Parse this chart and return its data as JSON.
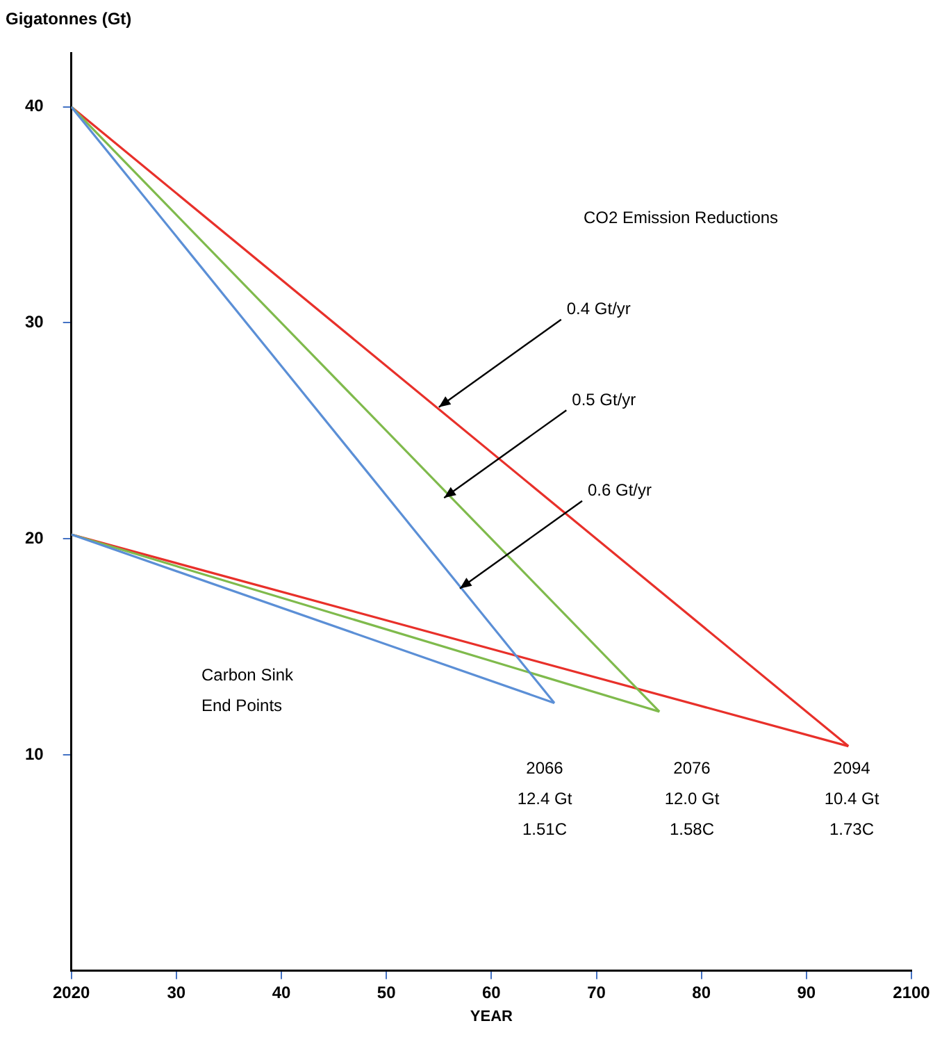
{
  "chart_data": {
    "type": "line",
    "ylabel": "Gigatonnes (Gt)",
    "xlabel": "YEAR",
    "xlim": [
      2020,
      2100
    ],
    "ylim": [
      0,
      42.5
    ],
    "xticks": [
      2020,
      {
        "value": 2030,
        "label": "30"
      },
      {
        "value": 2040,
        "label": "40"
      },
      {
        "value": 2050,
        "label": "50"
      },
      {
        "value": 2060,
        "label": "60"
      },
      {
        "value": 2070,
        "label": "70"
      },
      {
        "value": 2080,
        "label": "80"
      },
      {
        "value": 2090,
        "label": "90"
      },
      2100
    ],
    "yticks": [
      10,
      20,
      30,
      40
    ],
    "grid": false,
    "legend": false,
    "marker": "none",
    "line_style": "solid",
    "series": [
      {
        "color": "#5b8fd6",
        "x": [
          2020,
          2066
        ],
        "values": [
          40,
          12.4
        ]
      },
      {
        "color": "#7fba4c",
        "x": [
          2020,
          2076
        ],
        "values": [
          40,
          12.0
        ]
      },
      {
        "color": "#e8302a",
        "x": [
          2020,
          2094
        ],
        "values": [
          40,
          10.4
        ]
      },
      {
        "color": "#5b8fd6",
        "x": [
          2020,
          2066
        ],
        "values": [
          20.2,
          12.4
        ]
      },
      {
        "color": "#7fba4c",
        "x": [
          2020,
          2076
        ],
        "values": [
          20.2,
          12.0
        ]
      },
      {
        "color": "#e8302a",
        "x": [
          2020,
          2094
        ],
        "values": [
          20.2,
          10.4
        ]
      }
    ],
    "annotations": [
      "CO2 Emission Reductions",
      "Carbon Sink End Points",
      {
        "text": "0.4 Gt/yr",
        "x": 2055,
        "y": 26.1
      },
      {
        "text": "0.5 Gt/yr",
        "x": 2055.5,
        "y": 21.9
      },
      {
        "text": "0.6 Gt/yr",
        "x": 2057,
        "y": 17.7
      },
      "2066\n12.4 Gt\n1.51C",
      "2076\n12.0 Gt\n1.58C",
      "2094\n10.4 Gt\n1.73C"
    ]
  }
}
